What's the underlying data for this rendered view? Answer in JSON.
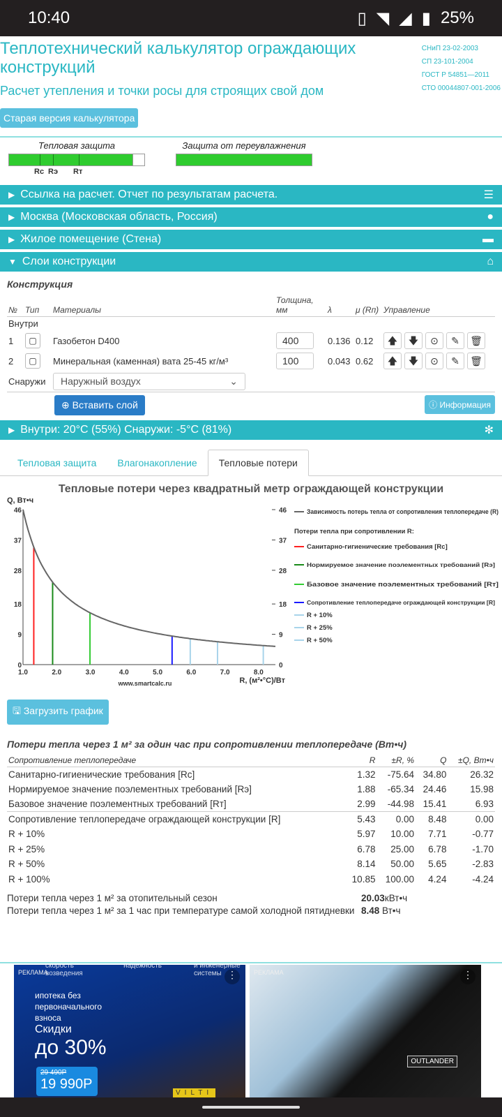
{
  "status": {
    "time": "10:40",
    "battery": "25%"
  },
  "header": {
    "title": "Теплотехнический калькулятор ограждающих конструкций",
    "subtitle": "Расчет утепления и точки росы для строящих свой дом",
    "norms": [
      "СНиП 23-02-2003",
      "СП 23-101-2004",
      "ГОСТ Р 54851—2011",
      "СТО 00044807-001-2006"
    ],
    "old_version_button": "Старая версия калькулятора"
  },
  "indicators": {
    "thermal": {
      "label": "Тепловая защита",
      "marks": [
        "Rc",
        "Rэ",
        "Rт"
      ],
      "fill_percent": 91
    },
    "moisture": {
      "label": "Защита от переувлажнения",
      "fill_percent": 100
    }
  },
  "sections": {
    "link": "Ссылка на расчет. Отчет по результатам расчета.",
    "city": "Москва (Московская область, Россия)",
    "room": "Жилое помещение (Стена)",
    "layers": "Слои конструкции",
    "climate": "Внутри: 20°C (55%) Снаружи: -5°C (81%)"
  },
  "construction": {
    "title": "Конструкция",
    "headers": {
      "num": "№",
      "type": "Тип",
      "materials": "Материалы",
      "thickness": "Толщина, мм",
      "lambda": "λ",
      "mu": "μ (Rп)",
      "control": "Управление"
    },
    "inside": "Внутри",
    "outside": "Снаружи",
    "layers": [
      {
        "num": "1",
        "material": "Газобетон D400",
        "thickness": "400",
        "lambda": "0.136",
        "mu": "0.12"
      },
      {
        "num": "2",
        "material": "Минеральная (каменная) вата 25-45 кг/м³",
        "thickness": "100",
        "lambda": "0.043",
        "mu": "0.62"
      }
    ],
    "outside_select": "Наружный воздух",
    "insert_button": "Вставить слой",
    "info_button": "Информация"
  },
  "tabs": [
    {
      "label": "Тепловая защита",
      "active": false
    },
    {
      "label": "Влагонакопление",
      "active": false
    },
    {
      "label": "Тепловые потери",
      "active": true
    }
  ],
  "chart_data": {
    "type": "line",
    "title": "Тепловые потери через квадратный метр ограждающей конструкции",
    "ylabel": "Q, Вт•ч",
    "xlabel": "R, (м²•°С)/Вт",
    "watermark": "www.smartcalc.ru",
    "xlim": [
      1.0,
      8.5
    ],
    "ylim": [
      0,
      46
    ],
    "xticks": [
      "1.0",
      "2.0",
      "3.0",
      "4.0",
      "5.0",
      "6.0",
      "7.0",
      "8.0"
    ],
    "yticks": [
      "0",
      "9",
      "18",
      "28",
      "37",
      "46"
    ],
    "curve": {
      "name": "Зависимость потерь тепла от сопротивления теплопередаче (R)",
      "color": "#666666",
      "formula_k": 46.04
    },
    "legend_group": "Потери тепла при сопротивлении R:",
    "markers": [
      {
        "name": "Санитарно-гигиенические требования [Rc]",
        "r": 1.32,
        "q": 34.8,
        "color": "#ff2020"
      },
      {
        "name": "Нормируемое значение поэлементных требований [Rэ]",
        "r": 1.88,
        "q": 24.46,
        "color": "#1a8a1a"
      },
      {
        "name": "Базовое значение поэлементных требований [Rт]",
        "r": 2.99,
        "q": 15.41,
        "color": "#33cc33"
      },
      {
        "name": "Сопротивление теплопередаче ограждающей конструкции [R]",
        "r": 5.43,
        "q": 8.48,
        "color": "#1a1aff"
      },
      {
        "name": "R + 10%",
        "r": 5.97,
        "q": 7.71,
        "color": "#a8d4ea"
      },
      {
        "name": "R + 25%",
        "r": 6.78,
        "q": 6.78,
        "color": "#a8d4ea"
      },
      {
        "name": "R + 50%",
        "r": 8.14,
        "q": 5.65,
        "color": "#a8d4ea"
      }
    ],
    "legend": "right"
  },
  "download_button": "Загрузить график",
  "results": {
    "title": "Потери тепла через 1 м² за один час при сопротивлении теплопередаче (Вт•ч)",
    "headers": [
      "Сопротивление теплопередаче",
      "R",
      "±R, %",
      "Q",
      "±Q, Вт•ч"
    ],
    "rows": [
      [
        "Санитарно-гигиенические требования [Rc]",
        "1.32",
        "-75.64",
        "34.80",
        "26.32"
      ],
      [
        "Нормируемое значение поэлементных требований [Rэ]",
        "1.88",
        "-65.34",
        "24.46",
        "15.98"
      ],
      [
        "Базовое значение поэлементных требований [Rт]",
        "2.99",
        "-44.98",
        "15.41",
        "6.93"
      ],
      [
        "Сопротивление теплопередаче ограждающей конструкции [R]",
        "5.43",
        "0.00",
        "8.48",
        "0.00"
      ],
      [
        "R + 10%",
        "5.97",
        "10.00",
        "7.71",
        "-0.77"
      ],
      [
        "R + 25%",
        "6.78",
        "25.00",
        "6.78",
        "-1.70"
      ],
      [
        "R + 50%",
        "8.14",
        "50.00",
        "5.65",
        "-2.83"
      ],
      [
        "R + 100%",
        "10.85",
        "100.00",
        "4.24",
        "-4.24"
      ]
    ],
    "season_label": "Потери тепла через 1 м² за отопительный сезон",
    "season_value": "20.03",
    "season_unit": "кВт•ч",
    "cold_label": "Потери тепла через 1 м² за 1 час при температуре самой холодной пятидневки",
    "cold_value": "8.48",
    "cold_unit": "Вт•ч"
  },
  "ads": [
    {
      "label": "РЕКЛАМА",
      "lines": [
        "ипотека без первоначального взноса",
        "Скидки",
        "до 30%"
      ],
      "old_price": "29 490Р",
      "price": "19 990Р",
      "top": [
        "скорость возведения",
        "надежность",
        "и инженерные системы"
      ],
      "brand": "VILTI"
    },
    {
      "label": "РЕКЛАМА",
      "badge": "OUTLANDER"
    }
  ]
}
